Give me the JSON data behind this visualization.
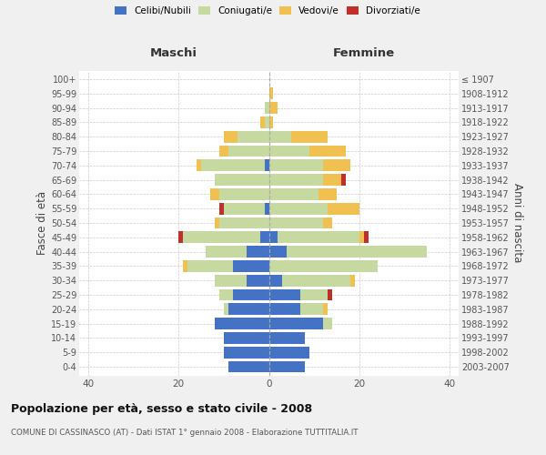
{
  "age_groups": [
    "0-4",
    "5-9",
    "10-14",
    "15-19",
    "20-24",
    "25-29",
    "30-34",
    "35-39",
    "40-44",
    "45-49",
    "50-54",
    "55-59",
    "60-64",
    "65-69",
    "70-74",
    "75-79",
    "80-84",
    "85-89",
    "90-94",
    "95-99",
    "100+"
  ],
  "birth_years": [
    "2003-2007",
    "1998-2002",
    "1993-1997",
    "1988-1992",
    "1983-1987",
    "1978-1982",
    "1973-1977",
    "1968-1972",
    "1963-1967",
    "1958-1962",
    "1953-1957",
    "1948-1952",
    "1943-1947",
    "1938-1942",
    "1933-1937",
    "1928-1932",
    "1923-1927",
    "1918-1922",
    "1913-1917",
    "1908-1912",
    "≤ 1907"
  ],
  "males": {
    "celibi": [
      9,
      10,
      10,
      12,
      9,
      8,
      5,
      8,
      5,
      2,
      0,
      1,
      0,
      0,
      1,
      0,
      0,
      0,
      0,
      0,
      0
    ],
    "coniugati": [
      0,
      0,
      0,
      0,
      1,
      3,
      7,
      10,
      9,
      17,
      11,
      9,
      11,
      12,
      14,
      9,
      7,
      1,
      1,
      0,
      0
    ],
    "vedovi": [
      0,
      0,
      0,
      0,
      0,
      0,
      0,
      1,
      0,
      0,
      1,
      0,
      2,
      0,
      1,
      2,
      3,
      1,
      0,
      0,
      0
    ],
    "divorziati": [
      0,
      0,
      0,
      0,
      0,
      0,
      0,
      0,
      0,
      1,
      0,
      1,
      0,
      0,
      0,
      0,
      0,
      0,
      0,
      0,
      0
    ]
  },
  "females": {
    "nubili": [
      8,
      9,
      8,
      12,
      7,
      7,
      3,
      0,
      4,
      2,
      0,
      0,
      0,
      0,
      0,
      0,
      0,
      0,
      0,
      0,
      0
    ],
    "coniugate": [
      0,
      0,
      0,
      2,
      5,
      6,
      15,
      24,
      31,
      18,
      12,
      13,
      11,
      12,
      12,
      9,
      5,
      0,
      0,
      0,
      0
    ],
    "vedove": [
      0,
      0,
      0,
      0,
      1,
      0,
      1,
      0,
      0,
      1,
      2,
      7,
      4,
      4,
      6,
      8,
      8,
      1,
      2,
      1,
      0
    ],
    "divorziate": [
      0,
      0,
      0,
      0,
      0,
      1,
      0,
      0,
      0,
      1,
      0,
      0,
      0,
      1,
      0,
      0,
      0,
      0,
      0,
      0,
      0
    ]
  },
  "colors": {
    "celibi_nubili": "#4472c4",
    "coniugati": "#c5d9a0",
    "vedovi": "#f0c050",
    "divorziati": "#c0302a"
  },
  "xlim": 42,
  "title": "Popolazione per età, sesso e stato civile - 2008",
  "subtitle": "COMUNE DI CASSINASCO (AT) - Dati ISTAT 1° gennaio 2008 - Elaborazione TUTTITALIA.IT",
  "ylabel_left": "Fasce di età",
  "ylabel_right": "Anni di nascita",
  "xlabel_left": "Maschi",
  "xlabel_right": "Femmine",
  "legend_labels": [
    "Celibi/Nubili",
    "Coniugati/e",
    "Vedovi/e",
    "Divorziati/e"
  ],
  "bg_color": "#f0f0f0",
  "plot_bg_color": "#ffffff"
}
